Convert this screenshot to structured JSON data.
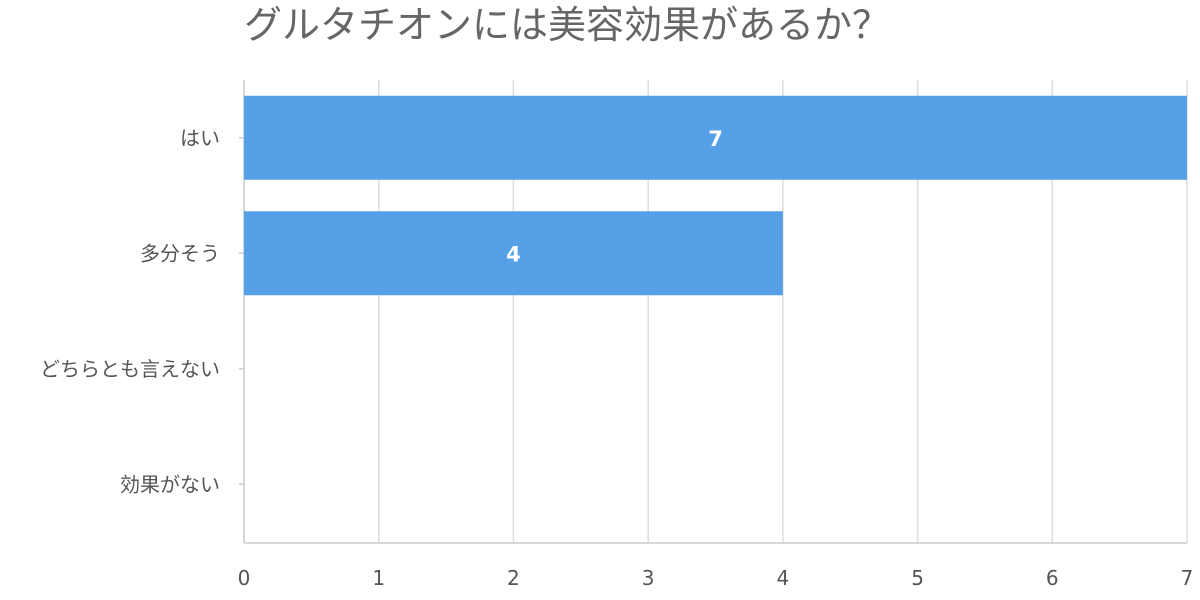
{
  "chart_data": {
    "type": "bar",
    "orientation": "horizontal",
    "title": "グルタチオンには美容効果があるか？",
    "categories": [
      "はい",
      "多分そう",
      "どちらとも言えない",
      "効果がない"
    ],
    "values": [
      7,
      4,
      0,
      0
    ],
    "xlim": [
      0,
      7
    ],
    "x_ticks": [
      0,
      1,
      2,
      3,
      4,
      5,
      6,
      7
    ],
    "grid": true,
    "legend": "none",
    "bar_color": "#55a0e6",
    "gridline_color": "#dddddd"
  }
}
